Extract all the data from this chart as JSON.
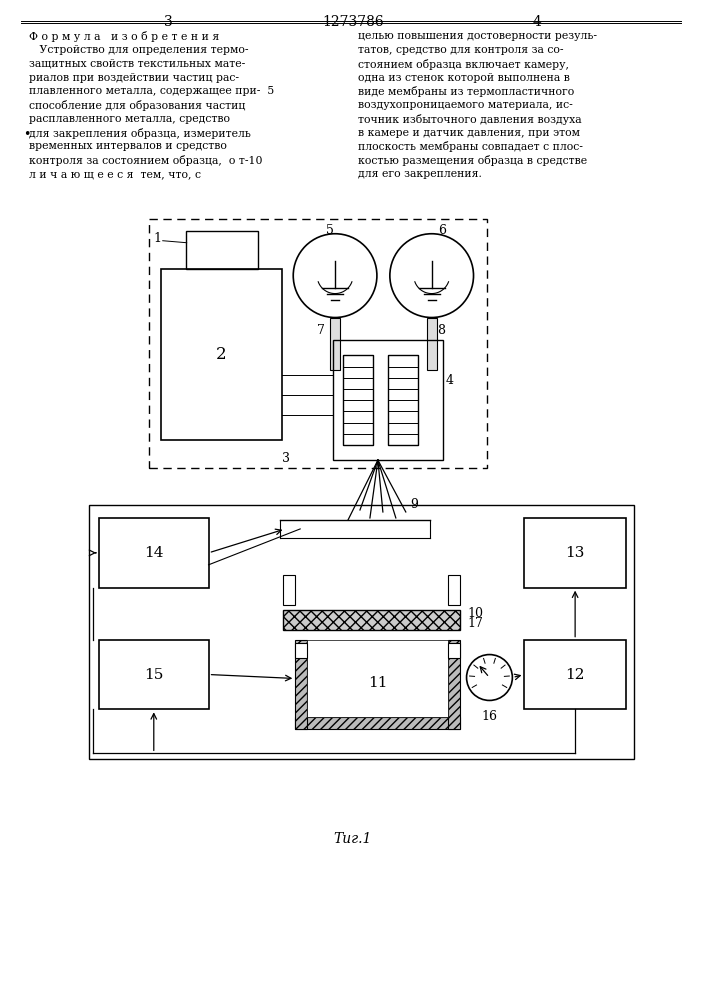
{
  "title": "1273786",
  "page_left": "3",
  "page_right": "4",
  "fig_label": "Τиг.1",
  "bg_color": "#ffffff",
  "line_color": "#000000",
  "text_color": "#000000",
  "left_text_lines": [
    "Ф о р м у л а   и з о б р е т е н и я",
    "   Устройство для определения термо-",
    "защитных свойств текстильных мате-",
    "риалов при воздействии частиц рас-",
    "плавленного металла, содержащее при-  5",
    "способление для образования частиц",
    "расплавленного металла, средство",
    "для закрепления образца, измеритель",
    "временных интервалов и средство",
    "контроля за состоянием образца,  о т-10",
    "л и ч а ю щ е е с я  тем, что, с"
  ],
  "right_text_lines": [
    "целью повышения достоверности резуль-",
    "татов, средство для контроля за со-",
    "стоянием образца включает камеру,",
    "одна из стенок которой выполнена в",
    "виде мембраны из термопластичного",
    "воздухопроницаемого материала, ис-",
    "точник избыточного давления воздуха",
    "в камере и датчик давления, при этом",
    "плоскость мембраны совпадает с плос-",
    "костью размещения образца в средстве",
    "для его закрепления."
  ]
}
